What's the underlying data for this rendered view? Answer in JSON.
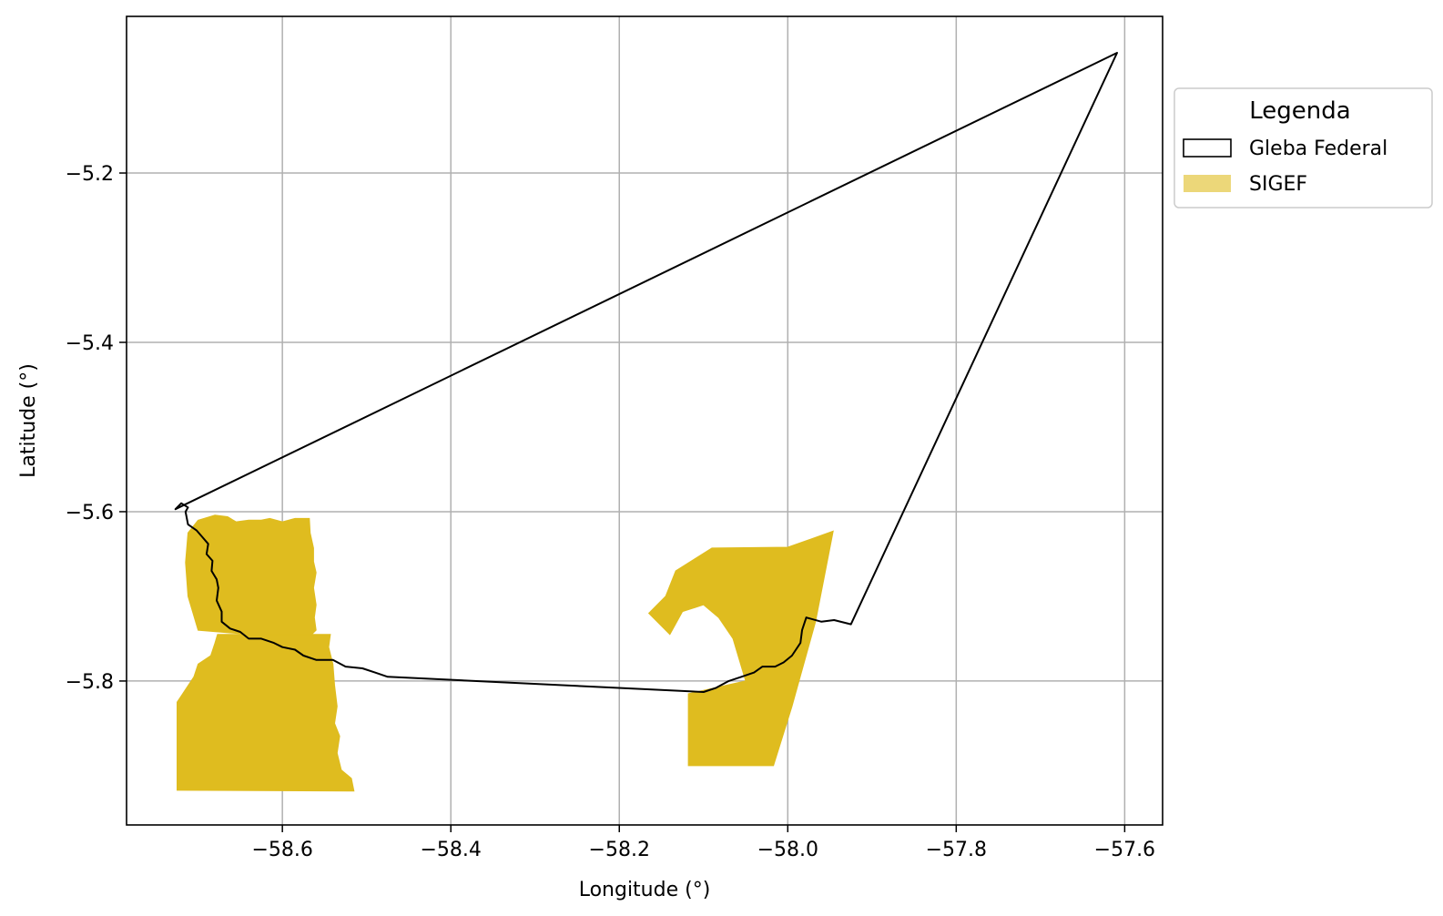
{
  "chart_data": {
    "type": "map",
    "title": "",
    "xlabel": "Longitude (°)",
    "ylabel": "Latitude (°)",
    "xlim": [
      -58.785,
      -57.555
    ],
    "ylim": [
      -5.97,
      -5.015
    ],
    "x_ticks": [
      -58.6,
      -58.4,
      -58.2,
      -58.0,
      -57.8,
      -57.6
    ],
    "x_tick_labels": [
      "−58.6",
      "−58.4",
      "−58.2",
      "−58.0",
      "−57.8",
      "−57.6"
    ],
    "y_ticks": [
      -5.2,
      -5.4,
      -5.6,
      -5.8
    ],
    "y_tick_labels": [
      "−5.2",
      "−5.4",
      "−5.6",
      "−5.8"
    ],
    "grid": true,
    "legend": {
      "title": "Legenda",
      "placement": "outside-right-top",
      "entries": [
        {
          "label": "Gleba Federal",
          "style": "outline"
        },
        {
          "label": "SIGEF",
          "style": "fill"
        }
      ]
    },
    "colors": {
      "gleba_stroke": "#000000",
      "sigef_fill": "#dfbc1f",
      "grid": "#b0b0b0"
    },
    "layers": {
      "sigef": [
        [
          [
            -58.7,
            -5.61
          ],
          [
            -58.68,
            -5.604
          ],
          [
            -58.665,
            -5.606
          ],
          [
            -58.655,
            -5.612
          ],
          [
            -58.64,
            -5.61
          ],
          [
            -58.625,
            -5.61
          ],
          [
            -58.615,
            -5.608
          ],
          [
            -58.6,
            -5.612
          ],
          [
            -58.585,
            -5.608
          ],
          [
            -58.568,
            -5.608
          ],
          [
            -58.567,
            -5.625
          ],
          [
            -58.563,
            -5.643
          ],
          [
            -58.563,
            -5.659
          ],
          [
            -58.56,
            -5.672
          ],
          [
            -58.563,
            -5.69
          ],
          [
            -58.56,
            -5.71
          ],
          [
            -58.562,
            -5.725
          ],
          [
            -58.56,
            -5.74
          ],
          [
            -58.565,
            -5.745
          ],
          [
            -58.64,
            -5.745
          ],
          [
            -58.7,
            -5.74
          ],
          [
            -58.712,
            -5.7
          ],
          [
            -58.715,
            -5.66
          ],
          [
            -58.712,
            -5.625
          ]
        ],
        [
          [
            -58.677,
            -5.745
          ],
          [
            -58.543,
            -5.745
          ],
          [
            -58.545,
            -5.76
          ],
          [
            -58.54,
            -5.78
          ],
          [
            -58.538,
            -5.805
          ],
          [
            -58.535,
            -5.83
          ],
          [
            -58.538,
            -5.85
          ],
          [
            -58.532,
            -5.865
          ],
          [
            -58.535,
            -5.885
          ],
          [
            -58.53,
            -5.905
          ],
          [
            -58.518,
            -5.915
          ],
          [
            -58.515,
            -5.93
          ],
          [
            -58.725,
            -5.929
          ],
          [
            -58.725,
            -5.825
          ],
          [
            -58.715,
            -5.81
          ],
          [
            -58.705,
            -5.795
          ],
          [
            -58.7,
            -5.78
          ],
          [
            -58.685,
            -5.77
          ],
          [
            -58.68,
            -5.755
          ]
        ],
        [
          [
            -58.145,
            -5.7
          ],
          [
            -58.133,
            -5.67
          ],
          [
            -58.09,
            -5.643
          ],
          [
            -58.0,
            -5.642
          ],
          [
            -57.946,
            -5.623
          ],
          [
            -57.967,
            -5.73
          ],
          [
            -57.995,
            -5.83
          ],
          [
            -58.017,
            -5.9
          ],
          [
            -58.118,
            -5.9
          ],
          [
            -58.118,
            -5.815
          ],
          [
            -58.05,
            -5.8
          ],
          [
            -58.065,
            -5.75
          ],
          [
            -58.082,
            -5.725
          ],
          [
            -58.1,
            -5.71
          ],
          [
            -58.125,
            -5.718
          ],
          [
            -58.14,
            -5.745
          ],
          [
            -58.165,
            -5.72
          ]
        ]
      ],
      "gleba_federal": [
        [
          [
            -57.609,
            -5.058
          ],
          [
            -58.727,
            -5.597
          ],
          [
            -58.72,
            -5.59
          ],
          [
            -58.712,
            -5.595
          ],
          [
            -58.715,
            -5.6
          ],
          [
            -58.712,
            -5.615
          ],
          [
            -58.702,
            -5.622
          ],
          [
            -58.695,
            -5.63
          ],
          [
            -58.688,
            -5.638
          ],
          [
            -58.69,
            -5.65
          ],
          [
            -58.683,
            -5.658
          ],
          [
            -58.684,
            -5.67
          ],
          [
            -58.678,
            -5.68
          ],
          [
            -58.676,
            -5.69
          ],
          [
            -58.678,
            -5.705
          ],
          [
            -58.672,
            -5.718
          ],
          [
            -58.672,
            -5.73
          ],
          [
            -58.662,
            -5.738
          ],
          [
            -58.65,
            -5.742
          ],
          [
            -58.64,
            -5.75
          ],
          [
            -58.625,
            -5.75
          ],
          [
            -58.61,
            -5.755
          ],
          [
            -58.6,
            -5.76
          ],
          [
            -58.585,
            -5.763
          ],
          [
            -58.575,
            -5.77
          ],
          [
            -58.56,
            -5.775
          ],
          [
            -58.54,
            -5.775
          ],
          [
            -58.525,
            -5.783
          ],
          [
            -58.505,
            -5.785
          ],
          [
            -58.49,
            -5.79
          ],
          [
            -58.475,
            -5.795
          ],
          [
            -58.1,
            -5.813
          ],
          [
            -58.085,
            -5.808
          ],
          [
            -58.07,
            -5.8
          ],
          [
            -58.055,
            -5.795
          ],
          [
            -58.04,
            -5.79
          ],
          [
            -58.03,
            -5.783
          ],
          [
            -58.015,
            -5.783
          ],
          [
            -58.005,
            -5.778
          ],
          [
            -57.995,
            -5.77
          ],
          [
            -57.985,
            -5.755
          ],
          [
            -57.983,
            -5.74
          ],
          [
            -57.978,
            -5.725
          ],
          [
            -57.96,
            -5.73
          ],
          [
            -57.945,
            -5.728
          ],
          [
            -57.925,
            -5.733
          ]
        ]
      ]
    }
  }
}
